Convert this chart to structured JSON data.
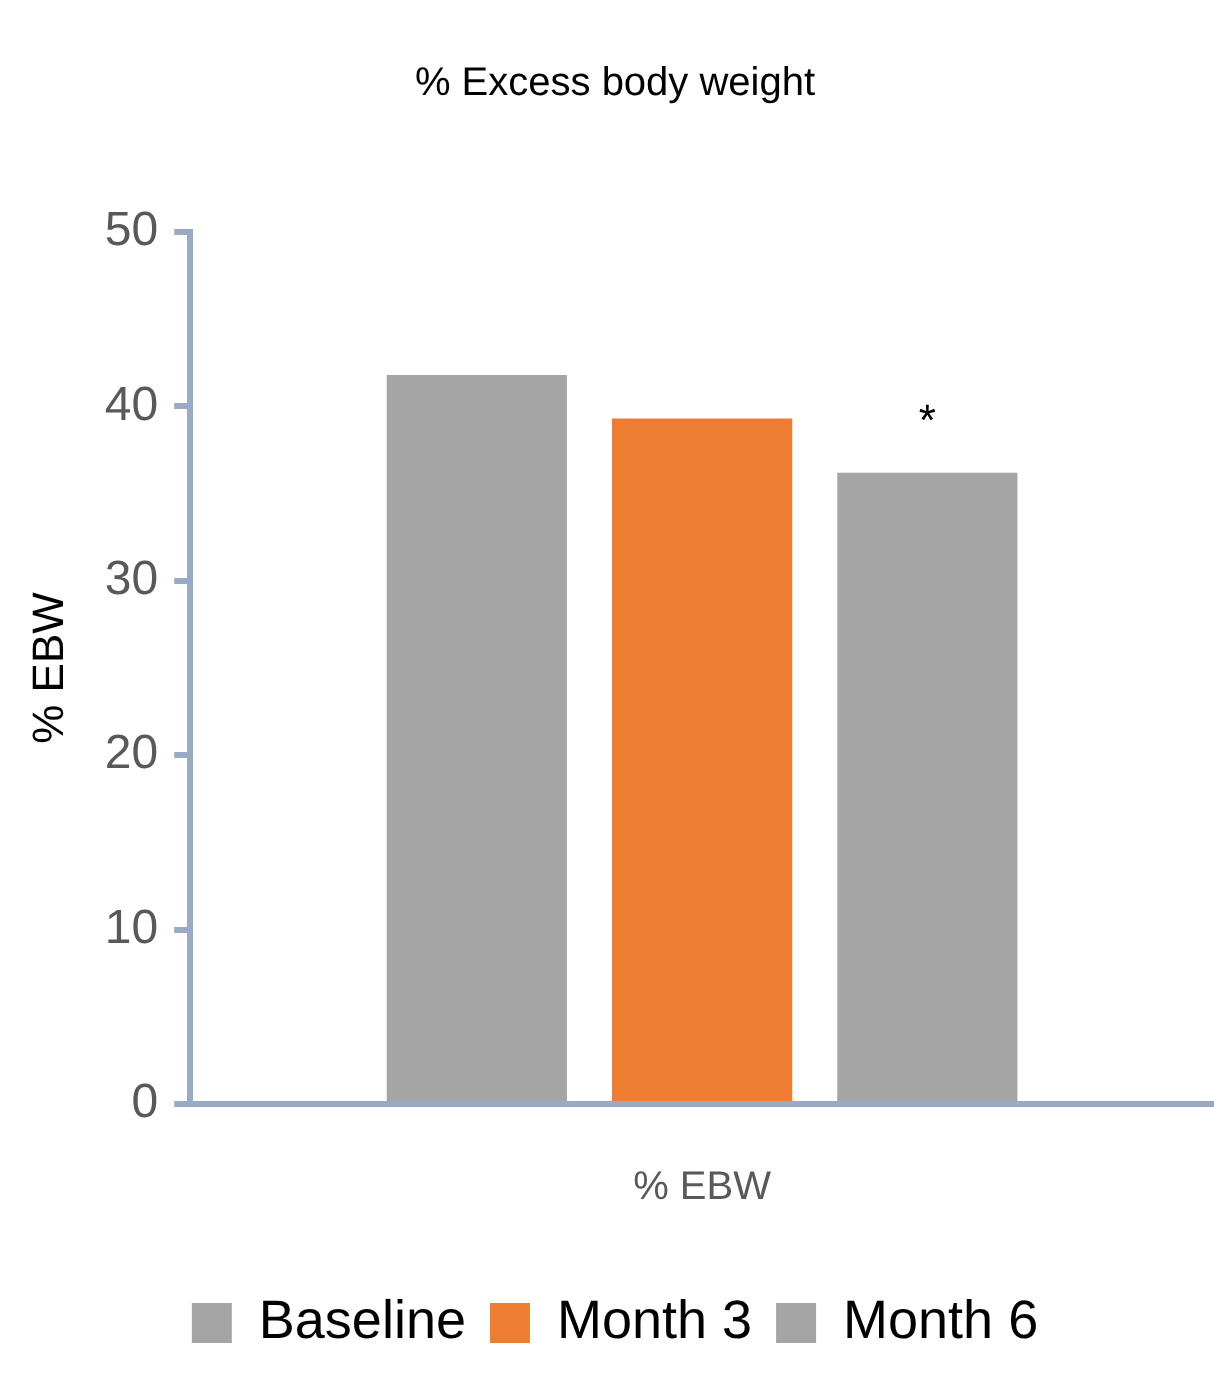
{
  "chart_data": {
    "type": "bar",
    "title": "% Excess body weight",
    "ylabel": "% EBW",
    "xlabel": "% EBW",
    "categories": [
      null
    ],
    "series": [
      {
        "name": "Baseline",
        "color": "#a5a5a5",
        "values": [
          41.8
        ]
      },
      {
        "name": "Month 3",
        "color": "#ed7d31",
        "values": [
          39.3
        ]
      },
      {
        "name": "Month 6",
        "color": "#a5a5a5",
        "values": [
          36.2
        ]
      }
    ],
    "ylim": [
      0,
      50
    ],
    "yticks": [
      0,
      10,
      20,
      30,
      40,
      50
    ],
    "grid": false,
    "legend": "bottom",
    "annotations": [
      "*"
    ]
  }
}
